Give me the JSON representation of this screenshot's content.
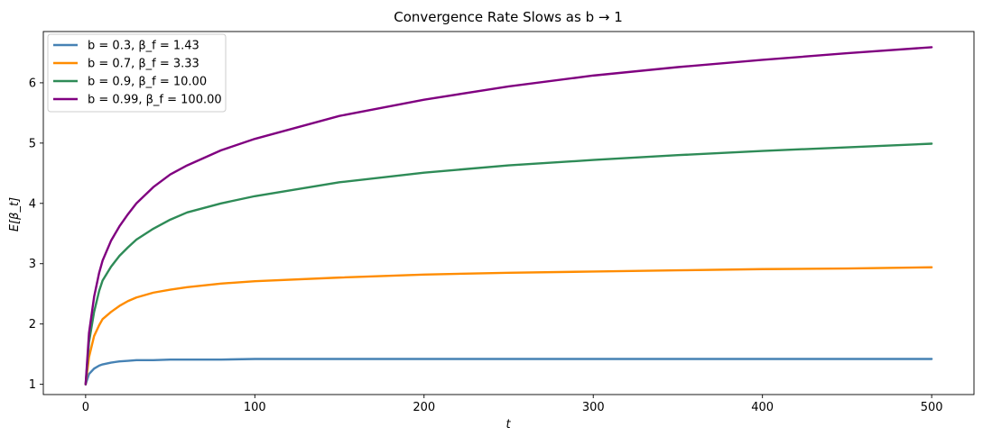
{
  "chart_data": {
    "type": "line",
    "title": "Convergence Rate Slows as b → 1",
    "xlabel": "t",
    "ylabel": "E[β_t]",
    "xlim": [
      -25,
      525
    ],
    "ylim": [
      0.83,
      6.85
    ],
    "xticks": [
      0,
      100,
      200,
      300,
      400,
      500
    ],
    "yticks": [
      1,
      2,
      3,
      4,
      5,
      6
    ],
    "grid": false,
    "legend_position": "top-left",
    "series": [
      {
        "name": "b = 0.3, β_f = 1.43",
        "color": "#4682b4",
        "x": [
          0,
          2,
          5,
          8,
          10,
          15,
          20,
          25,
          30,
          35,
          40,
          50,
          60,
          80,
          100,
          150,
          200,
          250,
          300,
          350,
          400,
          450,
          500
        ],
        "y": [
          1.0,
          1.17,
          1.26,
          1.31,
          1.33,
          1.36,
          1.38,
          1.39,
          1.4,
          1.4,
          1.4,
          1.41,
          1.41,
          1.41,
          1.42,
          1.42,
          1.42,
          1.42,
          1.42,
          1.42,
          1.42,
          1.42,
          1.42
        ]
      },
      {
        "name": "b = 0.7, β_f = 3.33",
        "color": "#ff8c00",
        "x": [
          0,
          2,
          5,
          8,
          10,
          15,
          20,
          25,
          30,
          40,
          50,
          60,
          80,
          100,
          150,
          200,
          250,
          300,
          350,
          400,
          450,
          500
        ],
        "y": [
          1.0,
          1.45,
          1.8,
          1.98,
          2.08,
          2.2,
          2.3,
          2.38,
          2.44,
          2.52,
          2.57,
          2.61,
          2.67,
          2.71,
          2.77,
          2.82,
          2.85,
          2.87,
          2.89,
          2.91,
          2.92,
          2.94
        ]
      },
      {
        "name": "b = 0.9, β_f = 10.00",
        "color": "#2e8b57",
        "x": [
          0,
          2,
          5,
          8,
          10,
          15,
          20,
          25,
          30,
          40,
          50,
          60,
          80,
          100,
          150,
          200,
          250,
          300,
          350,
          400,
          450,
          500
        ],
        "y": [
          1.0,
          1.7,
          2.2,
          2.55,
          2.72,
          2.95,
          3.13,
          3.27,
          3.4,
          3.58,
          3.73,
          3.85,
          4.0,
          4.12,
          4.35,
          4.51,
          4.63,
          4.72,
          4.8,
          4.87,
          4.93,
          4.99
        ]
      },
      {
        "name": "b = 0.99, β_f = 100.00",
        "color": "#800080",
        "x": [
          0,
          2,
          5,
          8,
          10,
          15,
          20,
          25,
          30,
          40,
          50,
          60,
          80,
          100,
          150,
          200,
          250,
          300,
          350,
          400,
          450,
          500
        ],
        "y": [
          1.0,
          1.85,
          2.45,
          2.85,
          3.05,
          3.38,
          3.62,
          3.82,
          4.0,
          4.27,
          4.48,
          4.63,
          4.88,
          5.07,
          5.45,
          5.72,
          5.94,
          6.12,
          6.26,
          6.38,
          6.49,
          6.59
        ]
      }
    ]
  }
}
